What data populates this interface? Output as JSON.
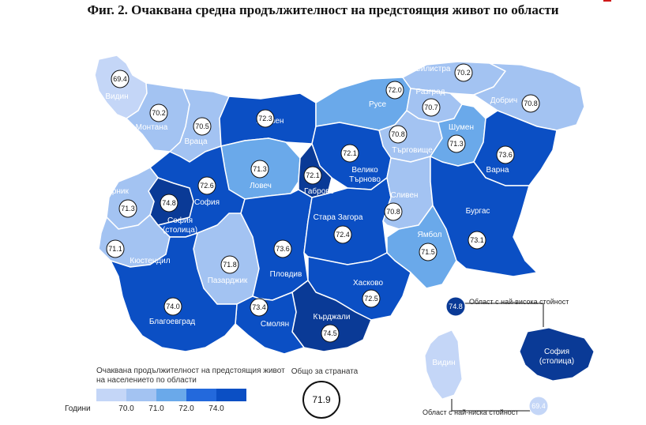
{
  "title": "Фиг. 2. Очаквана средна продължителност на предстоящия живот по области",
  "colors": {
    "c1": "#c4d6f7",
    "c2": "#a3c3f2",
    "c3": "#6aa9ea",
    "c4": "#2369dc",
    "c5": "#0b4fc4",
    "c6": "#0a3a96"
  },
  "regions": [
    {
      "name": "Видин",
      "value": "69.4"
    },
    {
      "name": "Монтана",
      "value": "70.2"
    },
    {
      "name": "Враца",
      "value": "70.5"
    },
    {
      "name": "Плевен",
      "value": "72.3"
    },
    {
      "name": "Русе",
      "value": "72.0"
    },
    {
      "name": "Силистра",
      "value": "70.2"
    },
    {
      "name": "Разград",
      "value": "70.7"
    },
    {
      "name": "Добрич",
      "value": "70.8"
    },
    {
      "name": "Шумен",
      "value": "71.3"
    },
    {
      "name": "Търговище",
      "value": "70.8"
    },
    {
      "name": "Варна",
      "value": "73.6"
    },
    {
      "name": "Велико Търново",
      "value": "72.1"
    },
    {
      "name": "Габрово",
      "value": "72.1"
    },
    {
      "name": "Ловеч",
      "value": "71.3"
    },
    {
      "name": "София",
      "value": "72.6"
    },
    {
      "name": "София (столица)",
      "value": "74.8"
    },
    {
      "name": "Перник",
      "value": "71.3"
    },
    {
      "name": "Кюстендил",
      "value": "71.1"
    },
    {
      "name": "Пазарджик",
      "value": "71.8"
    },
    {
      "name": "Пловдив",
      "value": "73.6"
    },
    {
      "name": "Стара Загора",
      "value": "72.4"
    },
    {
      "name": "Сливен",
      "value": "70.8"
    },
    {
      "name": "Ямбол",
      "value": "71.5"
    },
    {
      "name": "Бургас",
      "value": "73.1"
    },
    {
      "name": "Хасково",
      "value": "72.5"
    },
    {
      "name": "Кърджали",
      "value": "74.5"
    },
    {
      "name": "Смолян",
      "value": "73.4"
    },
    {
      "name": "Благоевград",
      "value": "74.0"
    }
  ],
  "legend": {
    "title": "Очаквана продължителност на предстоящия живот на населението по области",
    "unit": "Години",
    "ticks": [
      "70.0",
      "71.0",
      "72.0",
      "74.0"
    ]
  },
  "total": {
    "label": "Общо за страната",
    "value": "71.9"
  },
  "inset": {
    "max_label": "Област с най-висока стойност",
    "max_value": "74.8",
    "max_region": "София (столица)",
    "min_label": "Област с най-ниска стойност",
    "min_value": "69.4",
    "min_region": "Видин"
  }
}
